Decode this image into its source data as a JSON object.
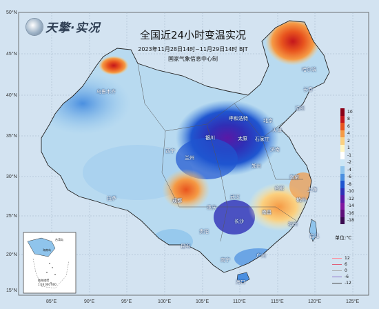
{
  "logo": {
    "text": "天擎·实况",
    "icon": "globe-icon"
  },
  "title": "全国近24小时变温实况",
  "subtitle": "2023年11月28日14时~11月29日14时  BJT",
  "issuer": "国家气象信息中心制",
  "lat_labels": [
    "50°N",
    "45°N",
    "40°N",
    "35°N",
    "30°N",
    "25°N",
    "20°N",
    "15°N"
  ],
  "lon_labels": [
    "85°E",
    "90°E",
    "95°E",
    "100°E",
    "105°E",
    "110°E",
    "115°E",
    "120°E",
    "125°E"
  ],
  "cities": [
    {
      "name": "乌鲁木齐"
    },
    {
      "name": "哈尔滨"
    },
    {
      "name": "长春"
    },
    {
      "name": "沈阳"
    },
    {
      "name": "呼和浩特"
    },
    {
      "name": "北京"
    },
    {
      "name": "天津"
    },
    {
      "name": "石家庄"
    },
    {
      "name": "太原"
    },
    {
      "name": "济南"
    },
    {
      "name": "郑州"
    },
    {
      "name": "南京"
    },
    {
      "name": "合肥"
    },
    {
      "name": "上海"
    },
    {
      "name": "杭州"
    },
    {
      "name": "武汉"
    },
    {
      "name": "成都"
    },
    {
      "name": "重庆"
    },
    {
      "name": "拉萨"
    },
    {
      "name": "贵阳"
    },
    {
      "name": "长沙"
    },
    {
      "name": "南昌"
    },
    {
      "name": "福州"
    },
    {
      "name": "台北"
    },
    {
      "name": "昆明"
    },
    {
      "name": "南宁"
    },
    {
      "name": "广州"
    },
    {
      "name": "海口"
    },
    {
      "name": "银川"
    },
    {
      "name": "西宁"
    },
    {
      "name": "兰州"
    }
  ],
  "legend": {
    "items": [
      {
        "value": "10",
        "color": "#8b0016"
      },
      {
        "value": "8",
        "color": "#c4161c"
      },
      {
        "value": "6",
        "color": "#e8541e"
      },
      {
        "value": "4",
        "color": "#f59a45"
      },
      {
        "value": "2",
        "color": "#fbd07f"
      },
      {
        "value": "1",
        "color": "#fff5c2"
      },
      {
        "value": "-1",
        "color": "#ffffff"
      },
      {
        "value": "-2",
        "color": "#cbe6f5"
      },
      {
        "value": "-4",
        "color": "#8fc4ec"
      },
      {
        "value": "-6",
        "color": "#4a8fe0"
      },
      {
        "value": "-8",
        "color": "#1f56d0"
      },
      {
        "value": "-10",
        "color": "#2f2fb6"
      },
      {
        "value": "-12",
        "color": "#5a18a6"
      },
      {
        "value": "-14",
        "color": "#8016a0"
      },
      {
        "value": "-16",
        "color": "#5e0f7a"
      },
      {
        "value": "-18",
        "color": "#3a0a50"
      }
    ],
    "unit": "单位:℃"
  },
  "line_legend": [
    {
      "value": "12",
      "color": "#ff8a9a"
    },
    {
      "value": "6",
      "color": "#e0607a"
    },
    {
      "value": "0",
      "color": "#aaaaaa"
    },
    {
      "value": "-6",
      "color": "#8a6cc8"
    },
    {
      "value": "-12",
      "color": "#444444"
    }
  ],
  "inset": {
    "labels": [
      "海南岛",
      "台湾岛",
      "南海诸岛",
      "1:18 000 000"
    ]
  }
}
